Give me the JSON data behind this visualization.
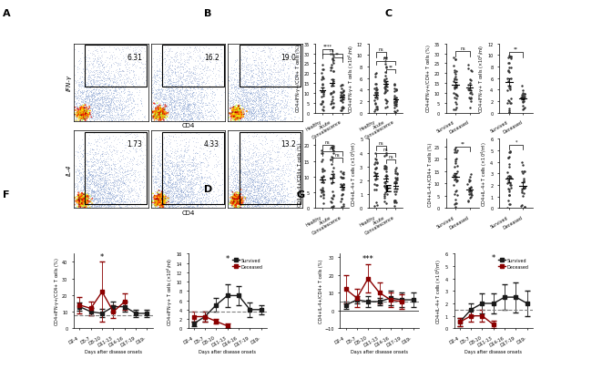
{
  "panel_A_upper_values": [
    "6.31",
    "16.2",
    "19.0"
  ],
  "panel_A_lower_values": [
    "1.73",
    "4.33",
    "13.2"
  ],
  "panel_F_days": [
    "D2-4",
    "D5-7",
    "D8-10",
    "D11-13",
    "D14-16",
    "D17-19",
    "D19-"
  ],
  "panel_F_survived_pct": [
    13,
    10,
    9,
    13,
    13,
    9,
    9
  ],
  "panel_F_survived_pct_err": [
    2.5,
    2,
    2.5,
    3,
    3,
    2,
    2
  ],
  "panel_F_deceased_pct": [
    14,
    12,
    22,
    10,
    16
  ],
  "panel_F_deceased_pct_err": [
    5,
    4,
    18,
    4,
    5
  ],
  "panel_F_survived_abs": [
    1.0,
    2.5,
    5.0,
    7.0,
    7.0,
    4.0,
    4.0
  ],
  "panel_F_survived_abs_err": [
    0.5,
    1.0,
    1.5,
    2.5,
    2.0,
    1.5,
    1.0
  ],
  "panel_F_deceased_abs": [
    2.5,
    2.5,
    1.5,
    0.5
  ],
  "panel_F_deceased_abs_err": [
    1.0,
    1.0,
    0.5,
    0.5
  ],
  "panel_F_dashed_pct": 8.0,
  "panel_F_dashed_abs": 3.5,
  "panel_G_days": [
    "D2-4",
    "D5-7",
    "D8-10",
    "D11-13",
    "D14-16",
    "D17-19",
    "D19-"
  ],
  "panel_G_survived_pct": [
    3,
    6,
    5,
    5,
    7,
    6,
    6
  ],
  "panel_G_survived_pct_err": [
    2,
    2,
    3,
    2,
    4,
    4,
    4
  ],
  "panel_G_deceased_pct": [
    12,
    7,
    18,
    10,
    6,
    5
  ],
  "panel_G_deceased_pct_err": [
    8,
    5,
    8,
    6,
    4,
    4
  ],
  "panel_G_survived_abs": [
    0.5,
    1.5,
    2.0,
    2.0,
    2.5,
    2.5,
    2.0
  ],
  "panel_G_survived_abs_err": [
    0.3,
    0.5,
    0.8,
    0.8,
    1.0,
    1.2,
    1.0
  ],
  "panel_G_deceased_abs": [
    0.5,
    1.0,
    1.0,
    0.3
  ],
  "panel_G_deceased_abs_err": [
    0.3,
    0.5,
    0.5,
    0.3
  ],
  "panel_G_dashed_pct": 5.0,
  "panel_G_dashed_abs": 1.5,
  "color_survived": "#1a1a1a",
  "color_deceased": "#8b0000",
  "background_color": "#ffffff"
}
